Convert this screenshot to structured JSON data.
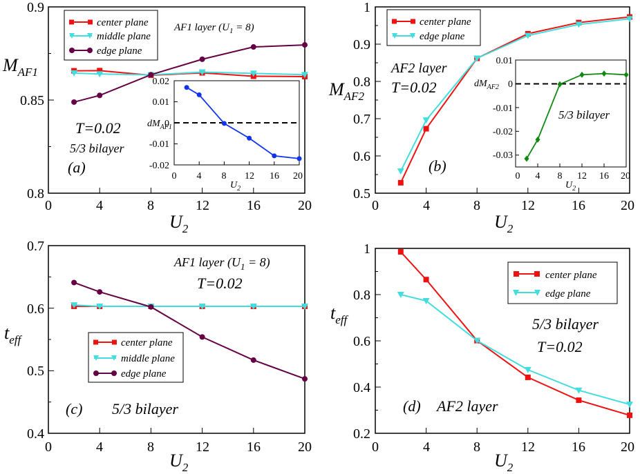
{
  "chart_data": [
    {
      "id": "a",
      "type": "line",
      "panel_label": "(a)",
      "xlabel": "U",
      "xlabel_sub": "2",
      "ylabel": "M",
      "ylabel_sub": "AF1",
      "xlim": [
        0,
        20
      ],
      "ylim": [
        0.8,
        0.9
      ],
      "xticks": [
        "0",
        "4",
        "8",
        "12",
        "16",
        "20"
      ],
      "yticks": [
        "0.8",
        "0.85",
        "0.9"
      ],
      "annotations": [
        {
          "text": "AF1 layer (U",
          "sub": "1",
          "after": " = 8)"
        },
        {
          "text": "T=0.02"
        },
        {
          "text": "5/3 bilayer"
        }
      ],
      "legend_position": "top-left",
      "series": [
        {
          "name": "center plane",
          "color": "#ee1111",
          "marker": "square",
          "x": [
            2,
            4,
            8,
            12,
            16,
            20
          ],
          "y": [
            0.8657,
            0.8658,
            0.8633,
            0.8646,
            0.8628,
            0.8626
          ]
        },
        {
          "name": "middle plane",
          "color": "#44dddd",
          "marker": "triangle-down",
          "x": [
            2,
            4,
            8,
            12,
            16,
            20
          ],
          "y": [
            0.8645,
            0.864,
            0.8635,
            0.865,
            0.8643,
            0.8636
          ]
        },
        {
          "name": "edge plane",
          "color": "#660044",
          "marker": "circle",
          "x": [
            2,
            4,
            8,
            12,
            16,
            20
          ],
          "y": [
            0.8489,
            0.8525,
            0.8636,
            0.8719,
            0.8785,
            0.8796
          ]
        }
      ],
      "inset": {
        "type": "line",
        "xlabel": "U",
        "xlabel_sub": "2",
        "ylabel": "dM",
        "ylabel_sub": "AF1",
        "xlim": [
          0,
          20
        ],
        "ylim": [
          -0.02,
          0.02
        ],
        "xticks": [
          "0",
          "4",
          "8",
          "12",
          "16",
          "20"
        ],
        "yticks": [
          "-0.02",
          "-0.01",
          "0",
          "0.01",
          "0.02"
        ],
        "zero_line": true,
        "series": [
          {
            "name": "dM",
            "color": "#1133ee",
            "marker": "circle",
            "x": [
              2,
              4,
              8,
              12,
              16,
              20
            ],
            "y": [
              0.0168,
              0.0133,
              -0.0003,
              -0.0073,
              -0.0157,
              -0.017
            ]
          }
        ]
      }
    },
    {
      "id": "b",
      "type": "line",
      "panel_label": "(b)",
      "xlabel": "U",
      "xlabel_sub": "2",
      "ylabel": "M",
      "ylabel_sub": "AF2",
      "xlim": [
        0,
        20
      ],
      "ylim": [
        0.5,
        1
      ],
      "xticks": [
        "0",
        "4",
        "8",
        "12",
        "16",
        "20"
      ],
      "yticks": [
        "0.5",
        "0.6",
        "0.7",
        "0.8",
        "0.9",
        "1"
      ],
      "annotations": [
        {
          "text": "AF2 layer"
        },
        {
          "text": "T=0.02"
        }
      ],
      "legend_position": "top-left",
      "series": [
        {
          "name": "center plane",
          "color": "#ee1111",
          "marker": "square",
          "x": [
            2,
            4,
            8,
            12,
            16,
            20
          ],
          "y": [
            0.528,
            0.673,
            0.862,
            0.928,
            0.958,
            0.973
          ]
        },
        {
          "name": "edge plane",
          "color": "#44dddd",
          "marker": "triangle-down",
          "x": [
            2,
            4,
            8,
            12,
            16,
            20
          ],
          "y": [
            0.559,
            0.696,
            0.862,
            0.923,
            0.953,
            0.968
          ]
        }
      ],
      "inset": {
        "type": "line",
        "xlabel": "U",
        "xlabel_sub": "2",
        "ylabel": "dM",
        "ylabel_sub": "AF2",
        "xlim": [
          0,
          20
        ],
        "ylim": [
          -0.035,
          0.01
        ],
        "xticks": [
          "0",
          "4",
          "8",
          "12",
          "16",
          "20"
        ],
        "yticks": [
          "-0.03",
          "-0.02",
          "-0.01",
          "0",
          "0.01"
        ],
        "zero_line": true,
        "annotation": "5/3 bilayer",
        "series": [
          {
            "name": "dM",
            "color": "#118811",
            "marker": "diamond",
            "x": [
              2,
              4,
              8,
              12,
              16,
              20
            ],
            "y": [
              -0.0315,
              -0.0235,
              -0.0002,
              0.0038,
              0.0043,
              0.0038
            ]
          }
        ]
      }
    },
    {
      "id": "c",
      "type": "line",
      "panel_label": "(c)",
      "xlabel": "U",
      "xlabel_sub": "2",
      "ylabel": "t",
      "ylabel_sub": "eff",
      "xlim": [
        0,
        20
      ],
      "ylim": [
        0.4,
        0.7
      ],
      "xticks": [
        "0",
        "4",
        "8",
        "12",
        "16",
        "20"
      ],
      "yticks": [
        "0.4",
        "0.5",
        "0.6",
        "0.7"
      ],
      "annotations": [
        {
          "text": "AF1 layer (U",
          "sub": "1",
          "after": " = 8)"
        },
        {
          "text": "T=0.02"
        },
        {
          "text": "5/3 bilayer"
        }
      ],
      "legend_position": "center-left",
      "series": [
        {
          "name": "center plane",
          "color": "#ee1111",
          "marker": "square",
          "x": [
            2,
            4,
            8,
            12,
            16,
            20
          ],
          "y": [
            0.603,
            0.603,
            0.603,
            0.603,
            0.603,
            0.603
          ]
        },
        {
          "name": "middle plane",
          "color": "#44dddd",
          "marker": "triangle-down",
          "x": [
            2,
            4,
            8,
            12,
            16,
            20
          ],
          "y": [
            0.605,
            0.603,
            0.603,
            0.603,
            0.603,
            0.603
          ]
        },
        {
          "name": "edge plane",
          "color": "#660044",
          "marker": "circle",
          "x": [
            2,
            4,
            8,
            12,
            16,
            20
          ],
          "y": [
            0.641,
            0.626,
            0.602,
            0.554,
            0.517,
            0.487
          ]
        }
      ]
    },
    {
      "id": "d",
      "type": "line",
      "panel_label": "(d)",
      "xlabel": "U",
      "xlabel_sub": "2",
      "ylabel": "t",
      "ylabel_sub": "eff",
      "xlim": [
        0,
        20
      ],
      "ylim": [
        0.2,
        1
      ],
      "xticks": [
        "0",
        "4",
        "8",
        "12",
        "16",
        "20"
      ],
      "yticks": [
        "0.2",
        "0.4",
        "0.6",
        "0.8",
        "1"
      ],
      "annotations": [
        {
          "text": "5/3 bilayer"
        },
        {
          "text": "T=0.02"
        },
        {
          "text": "AF2 layer"
        }
      ],
      "legend_position": "top-right",
      "series": [
        {
          "name": "center plane",
          "color": "#ee1111",
          "marker": "square",
          "x": [
            2,
            4,
            8,
            12,
            16,
            20
          ],
          "y": [
            0.985,
            0.865,
            0.601,
            0.442,
            0.343,
            0.278
          ]
        },
        {
          "name": "edge plane",
          "color": "#44dddd",
          "marker": "triangle-down",
          "x": [
            2,
            4,
            8,
            12,
            16,
            20
          ],
          "y": [
            0.8,
            0.773,
            0.601,
            0.475,
            0.386,
            0.325
          ]
        }
      ]
    }
  ]
}
